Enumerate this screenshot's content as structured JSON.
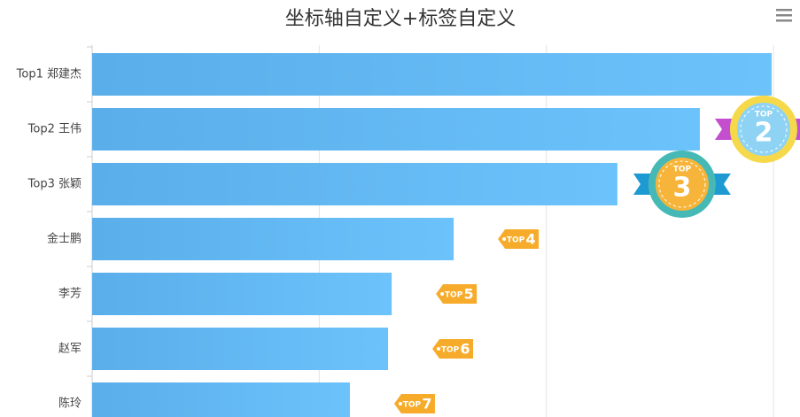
{
  "chart_data": {
    "type": "bar",
    "orientation": "horizontal",
    "title": "坐标轴自定义+标签自定义",
    "categories": [
      "Top1 郑建杰",
      "Top2 王伟",
      "Top3 张颖",
      "金士鹏",
      "李芳",
      "赵军",
      "陈玲"
    ],
    "values": [
      299.2,
      267.6,
      231.3,
      159.2,
      131.9,
      130.3,
      113.5
    ],
    "xlim": [
      0,
      300
    ],
    "xticks": [
      0,
      100,
      200,
      300
    ],
    "grid": true,
    "color": [
      "#5aaeea",
      "#6cc3fb"
    ],
    "badge_prefix": "TOP",
    "badges": [
      null,
      "2",
      "3",
      "4",
      "5",
      "6",
      "7"
    ]
  }
}
